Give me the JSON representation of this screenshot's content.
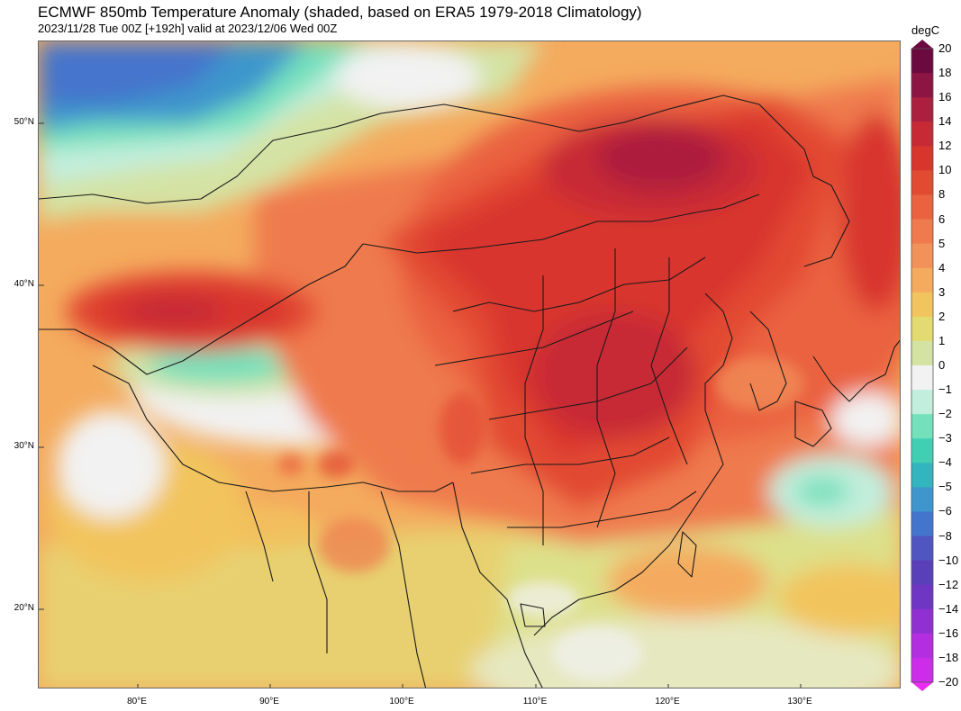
{
  "title": "ECMWF 850mb Temperature Anomaly (shaded, based on ERA5 1979-2018 Climatology)",
  "subtitle": "2023/11/28 Tue 00Z [+192h] valid at 2023/12/06 Wed 00Z",
  "map": {
    "lat_labels": [
      "50°N",
      "40°N",
      "30°N",
      "20°N"
    ],
    "lon_labels": [
      "80°E",
      "90°E",
      "100°E",
      "110°E",
      "120°E",
      "130°E"
    ],
    "lat_range": [
      15,
      55
    ],
    "lon_range": [
      72.5,
      137.5
    ],
    "anomaly_regions": [
      {
        "name": "northern-siberia-cold-anomaly",
        "level": -6
      },
      {
        "name": "west-kazakhstan-warm-anomaly",
        "level": 12
      },
      {
        "name": "mongolia-peak-warm-anomaly",
        "level": 16
      },
      {
        "name": "north-china-warm-anomaly",
        "level": 12
      },
      {
        "name": "tibet-near-normal",
        "level": 0
      },
      {
        "name": "japan-sea-cool-anomaly",
        "level": -2
      }
    ]
  },
  "colorbar": {
    "unit": "degC",
    "ticks": [
      "20",
      "18",
      "16",
      "14",
      "12",
      "10",
      "8",
      "6",
      "5",
      "4",
      "3",
      "2",
      "1",
      "0",
      "−1",
      "−2",
      "−3",
      "−4",
      "−5",
      "−6",
      "−8",
      "−10",
      "−12",
      "−14",
      "−16",
      "−18",
      "−20"
    ],
    "colors": {
      "20": "#6b0a3f",
      "18": "#8c1544",
      "16": "#ad1f3e",
      "14": "#c72a35",
      "12": "#d8362d",
      "10": "#e24a32",
      "8": "#ea623f",
      "6": "#ef7a4e",
      "5": "#f2915a",
      "4": "#f4ab5e",
      "3": "#f2c45d",
      "2": "#e3db72",
      "1": "#d4e3a4",
      "0": "#f2f2f2",
      "-1": "#c2eedd",
      "-2": "#74e0bc",
      "-3": "#41cfb3",
      "-4": "#33b5bf",
      "-5": "#3e96cc",
      "-6": "#4475cc",
      "-8": "#4f56c0",
      "-10": "#5a40b8",
      "-12": "#6e36c3",
      "-14": "#9130d2",
      "-16": "#b22ee0",
      "-18": "#cd2cea",
      "-20": "#ea2cf2"
    }
  }
}
